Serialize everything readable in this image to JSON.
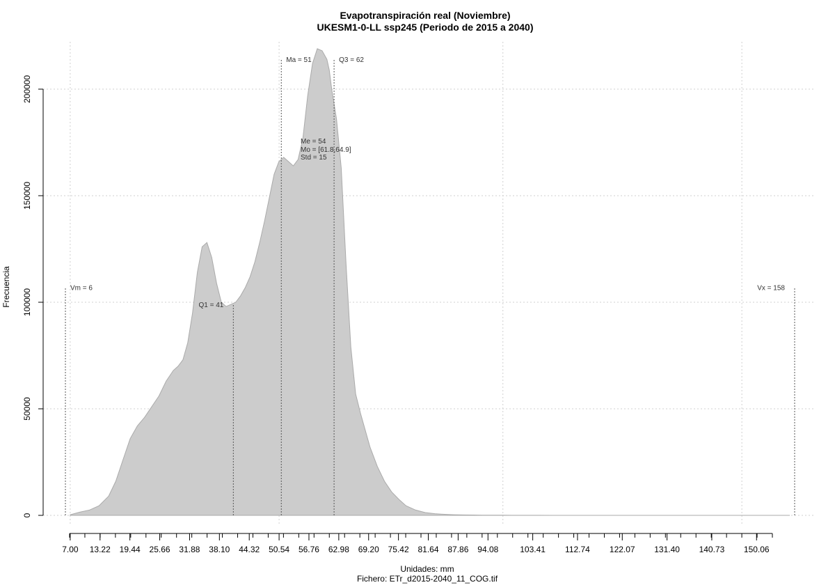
{
  "chart_data": {
    "type": "area",
    "title": "Evapotranspiración real (Noviembre)",
    "subtitle": "UKESM1-0-LL ssp245 (Periodo de 2015 a 2040)",
    "xlabel": "Unidades: mm",
    "ylabel": "Frecuencia",
    "footer": "Fichero: ETr_d2015-2040_11_COG.tif",
    "xlim": [
      6,
      158
    ],
    "ylim": [
      0,
      220000
    ],
    "x_ticks": [
      "7.00",
      "13.22",
      "19.44",
      "25.66",
      "31.88",
      "38.10",
      "44.32",
      "50.54",
      "56.76",
      "62.98",
      "69.20",
      "75.42",
      "81.64",
      "87.86",
      "94.08",
      "103.41",
      "112.74",
      "122.07",
      "131.40",
      "140.73",
      "150.06"
    ],
    "y_ticks": [
      "0",
      "50000",
      "100000",
      "150000",
      "200000"
    ],
    "y_tick_values": [
      0,
      50000,
      100000,
      150000,
      200000
    ],
    "x_grid_values": [
      7,
      50.54,
      97.19,
      147
    ],
    "fill_color": "#cccccc",
    "line_color": "#aaaaaa",
    "grid": true,
    "x": [
      7,
      9,
      11,
      13,
      15,
      16.5,
      18,
      19.5,
      21,
      22.5,
      24,
      25.5,
      27,
      28.5,
      29.5,
      30.5,
      31.5,
      32.5,
      33.5,
      34.5,
      35.5,
      36.5,
      37.5,
      38.5,
      39.5,
      40.5,
      41.5,
      42.5,
      43.5,
      44.5,
      45.5,
      46.5,
      47.5,
      48.5,
      49.5,
      50.5,
      51.5,
      52.5,
      53.5,
      54.5,
      55.5,
      56.5,
      57.5,
      58.5,
      59.5,
      60.5,
      61,
      61.5,
      62.5,
      63.5,
      64.5,
      65.5,
      66.5,
      67.5,
      68.5,
      69.5,
      71,
      72.5,
      74,
      75.5,
      77,
      79,
      81,
      83,
      85,
      87,
      89,
      91,
      93,
      95,
      97,
      99,
      101,
      104,
      108,
      115,
      125,
      135,
      145,
      157
    ],
    "values": [
      300,
      1500,
      2500,
      4500,
      9000,
      16000,
      26000,
      36000,
      42000,
      46000,
      51000,
      56000,
      63000,
      68000,
      70000,
      73000,
      81000,
      95000,
      114000,
      126000,
      128000,
      121000,
      109000,
      100000,
      98000,
      99000,
      100000,
      103000,
      107000,
      112000,
      119000,
      128000,
      138000,
      149000,
      160000,
      166000,
      168000,
      166000,
      164000,
      167000,
      177000,
      197000,
      212000,
      219000,
      218000,
      214000,
      209000,
      200000,
      186000,
      163000,
      118000,
      79000,
      57000,
      48000,
      40000,
      32000,
      23000,
      16000,
      11000,
      7500,
      4500,
      2500,
      1300,
      800,
      500,
      300,
      200,
      150,
      100,
      80,
      60,
      40,
      30,
      20,
      10,
      5,
      0,
      0,
      0,
      0
    ],
    "markers": [
      {
        "label": "Vm = 6",
        "x": 6,
        "y_top": 107000,
        "label_pos": "right"
      },
      {
        "label": "Q1 = 41",
        "x": 41,
        "y_top": 99000,
        "label_pos": "left"
      },
      {
        "label": "Ma = 51",
        "x": 51,
        "y_top": 214000,
        "label_pos": "right"
      },
      {
        "label": "Q3 = 62",
        "x": 62,
        "y_top": 214000,
        "label_pos": "right"
      },
      {
        "label": "Vx = 158",
        "x": 158,
        "y_top": 107000,
        "label_pos": "left"
      }
    ],
    "stats_text": [
      "Me = 54",
      "Mo = [61.8,64.9]",
      "Std = 15"
    ]
  }
}
